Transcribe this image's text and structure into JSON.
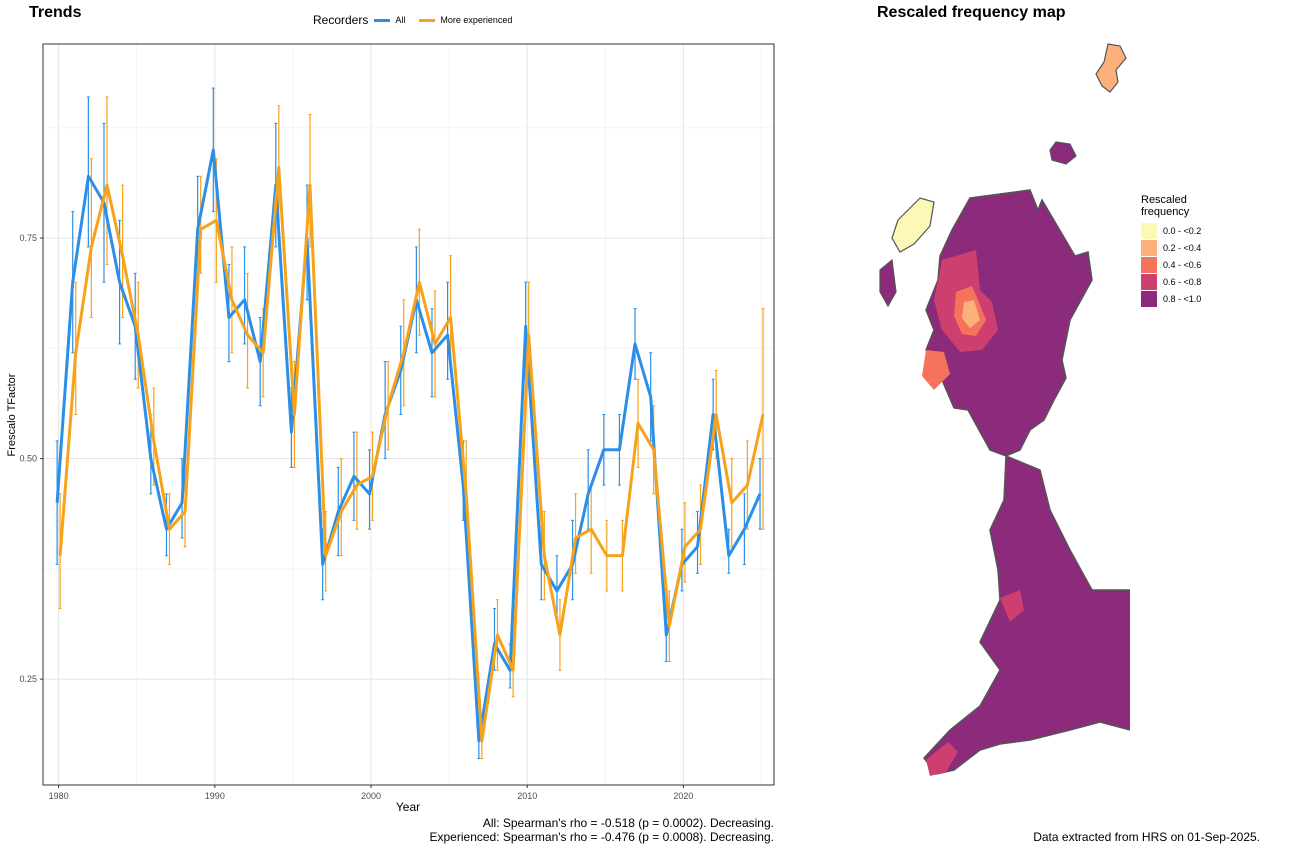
{
  "trends": {
    "title": "Trends",
    "caption_all": "All: Spearman's rho = -0.518 (p = 0.0002). Decreasing.",
    "caption_exp": "Experienced: Spearman's rho = -0.476 (p = 0.0008). Decreasing."
  },
  "map": {
    "title": "Rescaled frequency map",
    "legend_title_1": "Rescaled",
    "legend_title_2": "frequency",
    "legend_items": [
      {
        "label": "0.0 - <0.2",
        "color": "#FCF8B8"
      },
      {
        "label": "0.2 - <0.4",
        "color": "#FCB17C"
      },
      {
        "label": "0.4 - <0.6",
        "color": "#F5735C"
      },
      {
        "label": "0.6 - <0.8",
        "color": "#CD3F6E"
      },
      {
        "label": "0.8 - <1.0",
        "color": "#8C2A7C"
      }
    ],
    "source": "Data extracted from HRS on 01-Sep-2025."
  },
  "chart_data": {
    "type": "line",
    "xlabel": "Year",
    "ylabel": "Frescalo TFactor",
    "legend_title": "Recorders",
    "legend_position": "top",
    "grid": true,
    "xlim": [
      1979,
      2025.8
    ],
    "ylim": [
      0.13,
      0.97
    ],
    "xticks": [
      1980,
      1990,
      2000,
      2010,
      2020
    ],
    "yticks": [
      0.25,
      0.5,
      0.75
    ],
    "ytick_labels": [
      "0.25",
      "0.50",
      "0.75"
    ],
    "series": [
      {
        "name": "All",
        "color": "#2B8FE8",
        "x": [
          1980,
          1981,
          1982,
          1983,
          1984,
          1985,
          1986,
          1987,
          1988,
          1989,
          1990,
          1991,
          1992,
          1993,
          1994,
          1995,
          1996,
          1997,
          1998,
          1999,
          2000,
          2001,
          2002,
          2003,
          2004,
          2005,
          2006,
          2007,
          2008,
          2009,
          2010,
          2011,
          2012,
          2013,
          2014,
          2015,
          2016,
          2017,
          2018,
          2019,
          2020,
          2021,
          2022,
          2023,
          2024,
          2025
        ],
        "y": [
          0.45,
          0.7,
          0.82,
          0.79,
          0.7,
          0.65,
          0.5,
          0.42,
          0.45,
          0.76,
          0.85,
          0.66,
          0.68,
          0.61,
          0.81,
          0.53,
          0.75,
          0.38,
          0.44,
          0.48,
          0.46,
          0.55,
          0.6,
          0.68,
          0.62,
          0.64,
          0.47,
          0.18,
          0.29,
          0.26,
          0.65,
          0.38,
          0.35,
          0.38,
          0.46,
          0.51,
          0.51,
          0.63,
          0.57,
          0.3,
          0.38,
          0.4,
          0.55,
          0.39,
          0.42,
          0.46
        ],
        "lo": [
          0.38,
          0.62,
          0.74,
          0.7,
          0.63,
          0.59,
          0.46,
          0.39,
          0.41,
          0.71,
          0.78,
          0.61,
          0.63,
          0.56,
          0.74,
          0.49,
          0.68,
          0.34,
          0.39,
          0.43,
          0.42,
          0.5,
          0.55,
          0.62,
          0.57,
          0.59,
          0.43,
          0.16,
          0.26,
          0.24,
          0.59,
          0.34,
          0.32,
          0.34,
          0.42,
          0.47,
          0.47,
          0.59,
          0.52,
          0.27,
          0.35,
          0.37,
          0.51,
          0.37,
          0.38,
          0.42
        ],
        "hi": [
          0.52,
          0.78,
          0.91,
          0.88,
          0.77,
          0.71,
          0.55,
          0.46,
          0.5,
          0.82,
          0.92,
          0.72,
          0.74,
          0.66,
          0.88,
          0.58,
          0.81,
          0.42,
          0.49,
          0.53,
          0.51,
          0.61,
          0.65,
          0.74,
          0.67,
          0.7,
          0.52,
          0.21,
          0.33,
          0.29,
          0.7,
          0.43,
          0.39,
          0.43,
          0.51,
          0.55,
          0.55,
          0.67,
          0.62,
          0.34,
          0.42,
          0.44,
          0.59,
          0.42,
          0.46,
          0.5
        ]
      },
      {
        "name": "More experienced",
        "color": "#F7A21B",
        "x": [
          1980,
          1981,
          1982,
          1983,
          1984,
          1985,
          1986,
          1987,
          1988,
          1989,
          1990,
          1991,
          1992,
          1993,
          1994,
          1995,
          1996,
          1997,
          1998,
          1999,
          2000,
          2001,
          2002,
          2003,
          2004,
          2005,
          2006,
          2007,
          2008,
          2009,
          2010,
          2011,
          2012,
          2013,
          2014,
          2015,
          2016,
          2017,
          2018,
          2019,
          2020,
          2021,
          2022,
          2023,
          2024,
          2025
        ],
        "y": [
          0.39,
          0.62,
          0.74,
          0.81,
          0.73,
          0.64,
          0.52,
          0.42,
          0.44,
          0.76,
          0.77,
          0.68,
          0.64,
          0.62,
          0.83,
          0.55,
          0.81,
          0.39,
          0.44,
          0.47,
          0.48,
          0.56,
          0.62,
          0.7,
          0.63,
          0.66,
          0.46,
          0.18,
          0.3,
          0.26,
          0.64,
          0.39,
          0.3,
          0.41,
          0.42,
          0.39,
          0.39,
          0.54,
          0.51,
          0.31,
          0.4,
          0.42,
          0.55,
          0.45,
          0.47,
          0.55
        ],
        "lo": [
          0.33,
          0.55,
          0.66,
          0.72,
          0.66,
          0.58,
          0.47,
          0.38,
          0.4,
          0.71,
          0.7,
          0.62,
          0.58,
          0.57,
          0.77,
          0.49,
          0.74,
          0.35,
          0.39,
          0.42,
          0.43,
          0.51,
          0.56,
          0.64,
          0.57,
          0.6,
          0.42,
          0.16,
          0.26,
          0.23,
          0.58,
          0.34,
          0.26,
          0.37,
          0.37,
          0.35,
          0.35,
          0.49,
          0.46,
          0.27,
          0.36,
          0.38,
          0.5,
          0.4,
          0.42,
          0.42
        ],
        "hi": [
          0.46,
          0.7,
          0.84,
          0.91,
          0.81,
          0.7,
          0.58,
          0.46,
          0.49,
          0.82,
          0.84,
          0.74,
          0.71,
          0.67,
          0.9,
          0.61,
          0.89,
          0.44,
          0.5,
          0.53,
          0.53,
          0.61,
          0.68,
          0.76,
          0.69,
          0.73,
          0.52,
          0.21,
          0.34,
          0.3,
          0.7,
          0.44,
          0.34,
          0.46,
          0.47,
          0.43,
          0.43,
          0.59,
          0.56,
          0.35,
          0.45,
          0.47,
          0.6,
          0.5,
          0.52,
          0.67
        ]
      }
    ]
  }
}
